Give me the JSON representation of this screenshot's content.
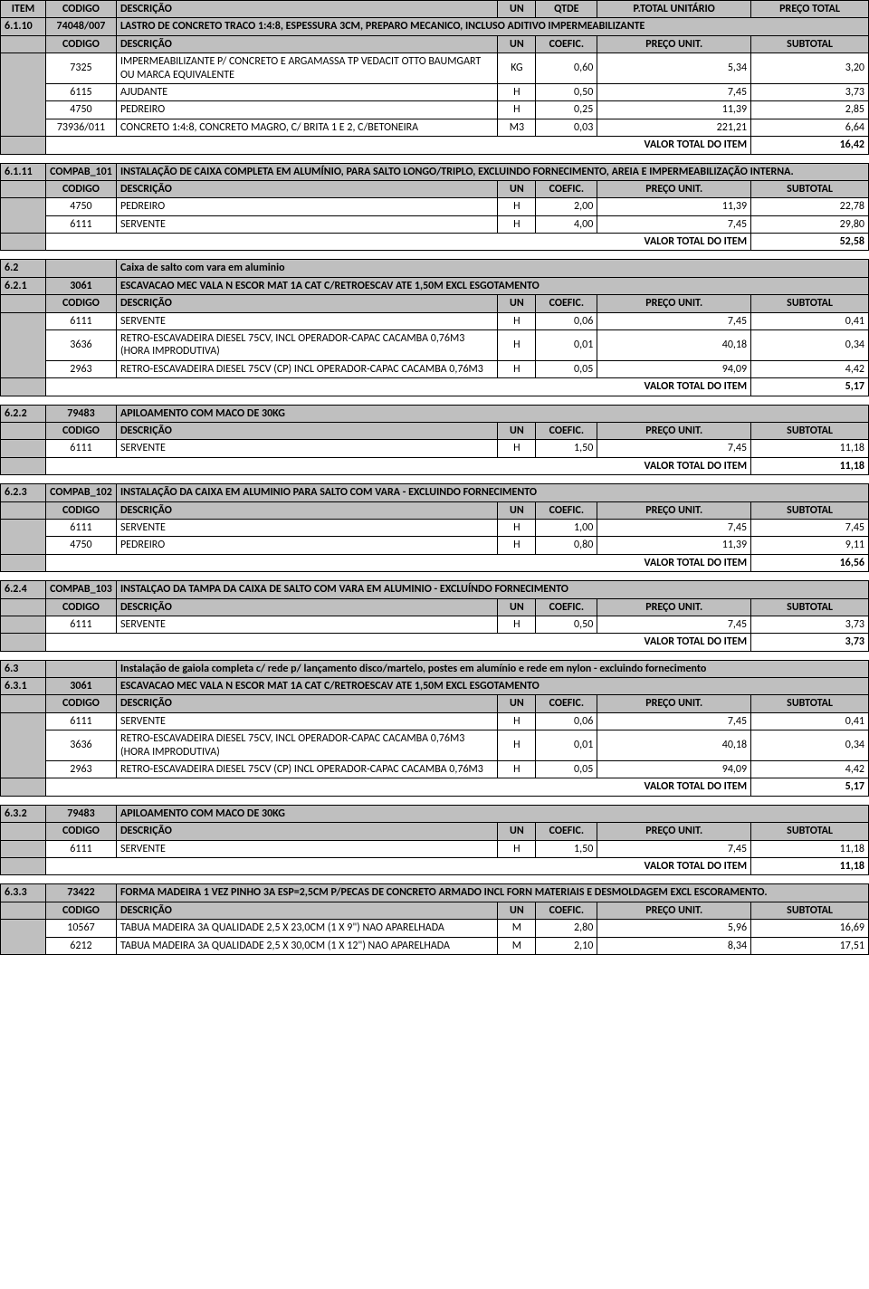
{
  "topHeaders": [
    "ITEM",
    "CODIGO",
    "DESCRIÇÃO",
    "UN",
    "QTDE",
    "P.TOTAL UNITÁRIO",
    "PREÇO TOTAL"
  ],
  "subHeaders": [
    "CODIGO",
    "DESCRIÇÃO",
    "UN",
    "COEFIC.",
    "PREÇO UNIT.",
    "SUBTOTAL"
  ],
  "totalLabel": "VALOR TOTAL DO ITEM",
  "blocks": [
    {
      "item": "6.1.10",
      "codigo": "74048/007",
      "desc": "LASTRO DE CONCRETO TRACO 1:4:8, ESPESSURA 3CM, PREPARO MECANICO, INCLUSO ADITIVO IMPERMEABILIZANTE",
      "rows": [
        {
          "cod": "7325",
          "desc": "IMPERMEABILIZANTE P/ CONCRETO E ARGAMASSA TP VEDACIT OTTO BAUMGART OU MARCA EQUIVALENTE",
          "un": "KG",
          "coef": "0,60",
          "pu": "5,34",
          "sub": "3,20"
        },
        {
          "cod": "6115",
          "desc": "AJUDANTE",
          "un": "H",
          "coef": "0,50",
          "pu": "7,45",
          "sub": "3,73"
        },
        {
          "cod": "4750",
          "desc": "PEDREIRO",
          "un": "H",
          "coef": "0,25",
          "pu": "11,39",
          "sub": "2,85"
        },
        {
          "cod": "73936/011",
          "desc": "CONCRETO 1:4:8, CONCRETO MAGRO, C/ BRITA 1 E 2,  C/BETONEIRA",
          "un": "M3",
          "coef": "0,03",
          "pu": "221,21",
          "sub": "6,64"
        }
      ],
      "total": "16,42"
    },
    {
      "item": "6.1.11",
      "codigo": "COMPAB_101",
      "desc": "INSTALAÇÃO DE CAIXA COMPLETA EM ALUMÍNIO, PARA SALTO LONGO/TRIPLO, EXCLUINDO FORNECIMENTO, AREIA E IMPERMEABILIZAÇÃO INTERNA.",
      "rows": [
        {
          "cod": "4750",
          "desc": "PEDREIRO",
          "un": "H",
          "coef": "2,00",
          "pu": "11,39",
          "sub": "22,78"
        },
        {
          "cod": "6111",
          "desc": "SERVENTE",
          "un": "H",
          "coef": "4,00",
          "pu": "7,45",
          "sub": "29,80"
        }
      ],
      "total": "52,58"
    },
    {
      "section": {
        "item": "6.2",
        "desc": "Caixa de salto com vara em aluminio"
      },
      "item": "6.2.1",
      "codigo": "3061",
      "desc": "ESCAVACAO MEC VALA N ESCOR MAT 1A CAT C/RETROESCAV ATE 1,50M EXCL ESGOTAMENTO",
      "rows": [
        {
          "cod": "6111",
          "desc": "SERVENTE",
          "un": "H",
          "coef": "0,06",
          "pu": "7,45",
          "sub": "0,41"
        },
        {
          "cod": "3636",
          "desc": "RETRO-ESCAVADEIRA DIESEL 75CV, INCL OPERADOR-CAPAC CACAMBA 0,76M3 (HORA IMPRODUTIVA)",
          "un": "H",
          "coef": "0,01",
          "pu": "40,18",
          "sub": "0,34"
        },
        {
          "cod": "2963",
          "desc": "RETRO-ESCAVADEIRA DIESEL 75CV (CP) INCL OPERADOR-CAPAC CACAMBA 0,76M3",
          "un": "H",
          "coef": "0,05",
          "pu": "94,09",
          "sub": "4,42"
        }
      ],
      "total": "5,17"
    },
    {
      "item": "6.2.2",
      "codigo": "79483",
      "desc": "APILOAMENTO COM MACO DE 30KG",
      "rows": [
        {
          "cod": "6111",
          "desc": "SERVENTE",
          "un": "H",
          "coef": "1,50",
          "pu": "7,45",
          "sub": "11,18"
        }
      ],
      "total": "11,18"
    },
    {
      "item": "6.2.3",
      "codigo": "COMPAB_102",
      "desc": "INSTALAÇÃO DA CAIXA EM ALUMINIO PARA SALTO COM VARA - EXCLUINDO FORNECIMENTO",
      "rows": [
        {
          "cod": "6111",
          "desc": "SERVENTE",
          "un": "H",
          "coef": "1,00",
          "pu": "7,45",
          "sub": "7,45"
        },
        {
          "cod": "4750",
          "desc": "PEDREIRO",
          "un": "H",
          "coef": "0,80",
          "pu": "11,39",
          "sub": "9,11"
        }
      ],
      "total": "16,56"
    },
    {
      "item": "6.2.4",
      "codigo": "COMPAB_103",
      "desc": "INSTALÇAO DA TAMPA DA CAIXA DE SALTO COM VARA EM ALUMINIO - EXCLUÍNDO FORNECIMENTO",
      "rows": [
        {
          "cod": "6111",
          "desc": "SERVENTE",
          "un": "H",
          "coef": "0,50",
          "pu": "7,45",
          "sub": "3,73"
        }
      ],
      "total": "3,73"
    },
    {
      "section": {
        "item": "6.3",
        "desc": "Instalação de gaiola completa c/ rede p/ lançamento disco/martelo, postes em alumínio e rede em nylon - excluindo fornecimento"
      },
      "item": "6.3.1",
      "codigo": "3061",
      "desc": "ESCAVACAO MEC VALA N ESCOR MAT 1A CAT C/RETROESCAV ATE 1,50M EXCL ESGOTAMENTO",
      "rows": [
        {
          "cod": "6111",
          "desc": "SERVENTE",
          "un": "H",
          "coef": "0,06",
          "pu": "7,45",
          "sub": "0,41"
        },
        {
          "cod": "3636",
          "desc": "RETRO-ESCAVADEIRA DIESEL 75CV, INCL OPERADOR-CAPAC CACAMBA 0,76M3 (HORA IMPRODUTIVA)",
          "un": "H",
          "coef": "0,01",
          "pu": "40,18",
          "sub": "0,34"
        },
        {
          "cod": "2963",
          "desc": "RETRO-ESCAVADEIRA DIESEL 75CV (CP) INCL OPERADOR-CAPAC CACAMBA 0,76M3",
          "un": "H",
          "coef": "0,05",
          "pu": "94,09",
          "sub": "4,42"
        }
      ],
      "total": "5,17"
    },
    {
      "item": "6.3.2",
      "codigo": "79483",
      "desc": "APILOAMENTO COM MACO DE 30KG",
      "rows": [
        {
          "cod": "6111",
          "desc": "SERVENTE",
          "un": "H",
          "coef": "1,50",
          "pu": "7,45",
          "sub": "11,18"
        }
      ],
      "total": "11,18"
    },
    {
      "item": "6.3.3",
      "codigo": "73422",
      "desc": "FORMA MADEIRA 1 VEZ PINHO 3A ESP=2,5CM P/PECAS DE CONCRETO ARMADO INCL FORN MATERIAIS E DESMOLDAGEM EXCL ESCORAMENTO.",
      "rows": [
        {
          "cod": "10567",
          "desc": "TABUA MADEIRA 3A QUALIDADE 2,5 X 23,0CM (1 X 9\") NAO APARELHADA",
          "un": "M",
          "coef": "2,80",
          "pu": "5,96",
          "sub": "16,69"
        },
        {
          "cod": "6212",
          "desc": "TABUA MADEIRA 3A QUALIDADE 2,5 X 30,0CM (1 X 12\") NAO APARELHADA",
          "un": "M",
          "coef": "2,10",
          "pu": "8,34",
          "sub": "17,51"
        }
      ],
      "noTotal": true
    }
  ]
}
